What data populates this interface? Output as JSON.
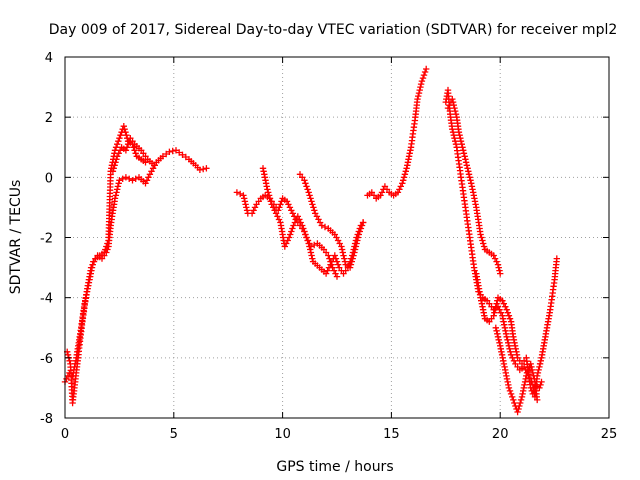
{
  "chart_data": {
    "type": "scatter",
    "title": "Day 009 of 2017, Sidereal Day-to-day VTEC variation (SDTVAR) for receiver mpl2",
    "xlabel": "GPS time / hours",
    "ylabel": "SDTVAR / TECUs",
    "xlim": [
      0,
      25
    ],
    "ylim": [
      -8,
      4
    ],
    "xticks": [
      0,
      5,
      10,
      15,
      20,
      25
    ],
    "yticks": [
      -8,
      -6,
      -4,
      -2,
      0,
      2,
      4
    ],
    "grid": true,
    "marker": "+",
    "color": "#ff0000",
    "series": [
      {
        "segments": [
          [
            [
              0.0,
              -6.8
            ],
            [
              0.2,
              -6.5
            ],
            [
              0.35,
              -6.6
            ],
            [
              0.5,
              -6.1
            ],
            [
              0.7,
              -5.2
            ],
            [
              0.9,
              -4.2
            ],
            [
              1.1,
              -3.5
            ],
            [
              1.3,
              -2.8
            ],
            [
              1.5,
              -2.6
            ],
            [
              1.7,
              -2.7
            ],
            [
              1.9,
              -2.5
            ],
            [
              2.0,
              -2.3
            ],
            [
              2.1,
              -1.6
            ],
            [
              2.3,
              -0.7
            ],
            [
              2.5,
              -0.1
            ],
            [
              2.8,
              0.0
            ],
            [
              3.1,
              -0.1
            ],
            [
              3.4,
              0.0
            ],
            [
              3.7,
              -0.2
            ],
            [
              3.9,
              0.1
            ],
            [
              4.2,
              0.5
            ],
            [
              4.5,
              0.7
            ],
            [
              4.8,
              0.85
            ],
            [
              5.1,
              0.9
            ],
            [
              5.4,
              0.75
            ],
            [
              5.7,
              0.6
            ],
            [
              6.0,
              0.4
            ],
            [
              6.2,
              0.25
            ],
            [
              6.5,
              0.3
            ]
          ],
          [
            [
              0.1,
              -5.8
            ],
            [
              0.25,
              -6.2
            ],
            [
              0.35,
              -7.5
            ],
            [
              0.45,
              -6.9
            ],
            [
              0.6,
              -6.0
            ],
            [
              0.8,
              -4.8
            ],
            [
              1.0,
              -3.8
            ],
            [
              1.2,
              -3.0
            ],
            [
              1.4,
              -2.7
            ],
            [
              1.6,
              -2.6
            ],
            [
              1.8,
              -2.5
            ],
            [
              2.0,
              -2.1
            ],
            [
              2.1,
              0.2
            ],
            [
              2.3,
              0.9
            ],
            [
              2.5,
              1.3
            ],
            [
              2.7,
              1.7
            ],
            [
              2.9,
              1.2
            ],
            [
              3.1,
              1.1
            ],
            [
              3.3,
              0.7
            ],
            [
              3.5,
              0.6
            ],
            [
              3.7,
              0.5
            ]
          ],
          [
            [
              2.2,
              0.2
            ],
            [
              2.4,
              0.7
            ],
            [
              2.6,
              1.0
            ],
            [
              2.8,
              0.9
            ],
            [
              3.0,
              1.3
            ],
            [
              3.2,
              1.1
            ],
            [
              3.5,
              0.9
            ],
            [
              3.8,
              0.6
            ],
            [
              4.1,
              0.4
            ]
          ],
          [
            [
              7.9,
              -0.5
            ],
            [
              8.2,
              -0.6
            ],
            [
              8.4,
              -1.2
            ],
            [
              8.6,
              -1.2
            ],
            [
              8.8,
              -0.9
            ],
            [
              9.0,
              -0.7
            ],
            [
              9.2,
              -0.6
            ],
            [
              9.4,
              -0.7
            ],
            [
              9.6,
              -0.9
            ],
            [
              9.8,
              -1.1
            ],
            [
              10.0,
              -0.7
            ],
            [
              10.2,
              -0.8
            ],
            [
              10.4,
              -1.1
            ],
            [
              10.6,
              -1.4
            ],
            [
              10.8,
              -1.6
            ],
            [
              11.0,
              -1.8
            ],
            [
              11.2,
              -2.2
            ],
            [
              11.4,
              -2.8
            ],
            [
              11.7,
              -3.0
            ],
            [
              12.0,
              -3.2
            ],
            [
              12.2,
              -2.9
            ],
            [
              12.4,
              -2.6
            ],
            [
              12.6,
              -3.0
            ],
            [
              12.8,
              -3.2
            ],
            [
              13.0,
              -3.0
            ],
            [
              13.2,
              -2.6
            ],
            [
              13.4,
              -2.0
            ],
            [
              13.6,
              -1.6
            ],
            [
              13.7,
              -1.5
            ]
          ],
          [
            [
              9.1,
              0.3
            ],
            [
              9.3,
              -0.4
            ],
            [
              9.5,
              -0.9
            ],
            [
              9.7,
              -1.2
            ],
            [
              9.9,
              -1.5
            ],
            [
              10.1,
              -2.3
            ],
            [
              10.3,
              -2.0
            ],
            [
              10.5,
              -1.6
            ],
            [
              10.7,
              -1.3
            ],
            [
              10.9,
              -1.6
            ],
            [
              11.1,
              -2.0
            ],
            [
              11.3,
              -2.3
            ],
            [
              11.6,
              -2.2
            ],
            [
              11.9,
              -2.4
            ],
            [
              12.1,
              -2.6
            ],
            [
              12.3,
              -3.0
            ],
            [
              12.5,
              -3.3
            ]
          ],
          [
            [
              10.8,
              0.1
            ],
            [
              11.0,
              -0.1
            ],
            [
              11.2,
              -0.5
            ],
            [
              11.5,
              -1.2
            ],
            [
              11.8,
              -1.6
            ],
            [
              12.1,
              -1.7
            ],
            [
              12.4,
              -1.9
            ],
            [
              12.7,
              -2.3
            ],
            [
              12.9,
              -2.9
            ],
            [
              13.1,
              -3.0
            ],
            [
              13.3,
              -2.5
            ],
            [
              13.5,
              -1.9
            ],
            [
              13.7,
              -1.5
            ]
          ],
          [
            [
              13.9,
              -0.6
            ],
            [
              14.1,
              -0.5
            ],
            [
              14.3,
              -0.7
            ],
            [
              14.5,
              -0.6
            ],
            [
              14.7,
              -0.3
            ],
            [
              14.9,
              -0.5
            ],
            [
              15.1,
              -0.6
            ],
            [
              15.3,
              -0.5
            ],
            [
              15.5,
              -0.2
            ],
            [
              15.7,
              0.3
            ],
            [
              15.9,
              1.0
            ],
            [
              16.1,
              2.0
            ],
            [
              16.2,
              2.6
            ],
            [
              16.4,
              3.2
            ],
            [
              16.6,
              3.6
            ]
          ],
          [
            [
              17.5,
              2.5
            ],
            [
              17.6,
              2.9
            ],
            [
              17.7,
              2.1
            ],
            [
              17.8,
              1.6
            ],
            [
              18.0,
              1.0
            ],
            [
              18.2,
              0.0
            ],
            [
              18.4,
              -1.0
            ],
            [
              18.6,
              -2.0
            ],
            [
              18.8,
              -3.0
            ],
            [
              19.0,
              -3.8
            ],
            [
              19.2,
              -4.0
            ],
            [
              19.4,
              -4.1
            ],
            [
              19.7,
              -4.4
            ],
            [
              19.9,
              -4.3
            ],
            [
              20.1,
              -4.6
            ],
            [
              20.3,
              -5.3
            ],
            [
              20.5,
              -5.9
            ],
            [
              20.7,
              -6.2
            ],
            [
              20.9,
              -6.4
            ],
            [
              21.1,
              -6.3
            ],
            [
              21.3,
              -6.6
            ],
            [
              21.5,
              -6.9
            ],
            [
              21.6,
              -7.3
            ],
            [
              21.7,
              -6.6
            ],
            [
              21.9,
              -6.0
            ],
            [
              22.1,
              -5.2
            ],
            [
              22.3,
              -4.4
            ],
            [
              22.5,
              -3.4
            ],
            [
              22.6,
              -2.7
            ]
          ],
          [
            [
              17.6,
              2.3
            ],
            [
              17.8,
              2.6
            ],
            [
              18.0,
              2.0
            ],
            [
              18.1,
              1.5
            ],
            [
              18.3,
              0.9
            ],
            [
              18.5,
              0.3
            ],
            [
              18.7,
              -0.3
            ],
            [
              18.9,
              -1.0
            ],
            [
              19.1,
              -1.9
            ],
            [
              19.3,
              -2.4
            ],
            [
              19.5,
              -2.5
            ],
            [
              19.7,
              -2.6
            ],
            [
              19.9,
              -2.9
            ],
            [
              20.0,
              -3.2
            ]
          ],
          [
            [
              18.9,
              -3.2
            ],
            [
              19.1,
              -4.0
            ],
            [
              19.3,
              -4.7
            ],
            [
              19.5,
              -4.8
            ],
            [
              19.7,
              -4.6
            ],
            [
              19.9,
              -4.0
            ],
            [
              20.1,
              -4.1
            ],
            [
              20.3,
              -4.4
            ],
            [
              20.5,
              -4.8
            ],
            [
              20.6,
              -5.3
            ],
            [
              20.8,
              -6.0
            ],
            [
              21.0,
              -6.2
            ],
            [
              21.2,
              -6.0
            ],
            [
              21.4,
              -7.0
            ],
            [
              21.5,
              -7.2
            ],
            [
              21.6,
              -6.9
            ],
            [
              21.8,
              -7.0
            ],
            [
              21.9,
              -6.8
            ]
          ],
          [
            [
              19.8,
              -5.0
            ],
            [
              20.0,
              -5.6
            ],
            [
              20.2,
              -6.3
            ],
            [
              20.4,
              -7.0
            ],
            [
              20.6,
              -7.4
            ],
            [
              20.8,
              -7.8
            ],
            [
              21.0,
              -7.3
            ],
            [
              21.2,
              -6.6
            ],
            [
              21.4,
              -6.2
            ],
            [
              21.6,
              -6.8
            ],
            [
              21.7,
              -7.4
            ]
          ]
        ]
      }
    ]
  }
}
